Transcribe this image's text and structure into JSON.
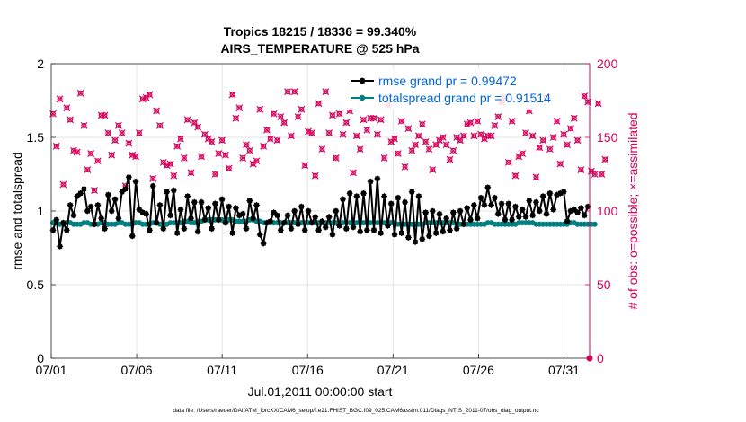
{
  "chart_data": {
    "type": "line",
    "title": "Tropics 18215 / 18336 = 99.340%",
    "subtitle": "AIRS_TEMPERATURE @ 525 hPa",
    "xlabel": "Jul.01,2011 00:00:00 start",
    "ylabel": "rmse and totalspread",
    "y2label": "# of obs: o=possible; ×=assimilated",
    "footnote": "data file: /Users/raeder/DAI/ATM_forcXX/CAM6_setup/f.e21.FHIST_BGC.f09_025.CAM6assim.011/Diags_NTrS_2011-07/obs_diag_output.nc",
    "xlim": [
      0,
      31.5
    ],
    "ylim": [
      0,
      2
    ],
    "y2lim": [
      0,
      200
    ],
    "grid": true,
    "legend_position": "top-right",
    "x_tick_values": [
      0,
      5,
      10,
      15,
      20,
      25,
      30
    ],
    "x_ticks": [
      "07/01",
      "07/06",
      "07/11",
      "07/16",
      "07/21",
      "07/26",
      "07/31"
    ],
    "y_tick_values": [
      0,
      0.5,
      1,
      1.5,
      2
    ],
    "y_ticks": [
      "0",
      "0.5",
      "1",
      "1.5",
      "2"
    ],
    "y2_tick_values": [
      0,
      50,
      100,
      150,
      200
    ],
    "y2_ticks": [
      "0",
      "50",
      "100",
      "150",
      "200"
    ],
    "series": [
      {
        "name": "rmse grand pr = 0.99472",
        "color": "#000000",
        "axis": "left",
        "values": [
          0.87,
          0.94,
          0.76,
          0.92,
          0.87,
          1.04,
          0.97,
          1.1,
          1.12,
          1.15,
          1.0,
          1.03,
          0.91,
          1.04,
          0.95,
          0.88,
          1.11,
          1.0,
          1.08,
          0.95,
          1.13,
          1.15,
          1.23,
          0.83,
          1.2,
          1.01,
          0.99,
          0.98,
          0.87,
          1.17,
          0.92,
          1.04,
          0.88,
          1.13,
          0.97,
          1.14,
          0.85,
          1.01,
          0.88,
          1.1,
          0.95,
          1.06,
          0.86,
          1.06,
          0.94,
          1.02,
          0.88,
          1.05,
          0.94,
          1.08,
          0.92,
          1.03,
          0.85,
          1.02,
          0.97,
          0.98,
          0.88,
          1.07,
          0.95,
          1.04,
          0.84,
          0.78,
          0.92,
          0.93,
          0.99,
          0.97,
          0.87,
          0.92,
          0.97,
          0.88,
          1.0,
          0.91,
          1.03,
          0.87,
          1.0,
          0.92,
          0.96,
          0.87,
          0.93,
          0.89,
          0.96,
          0.84,
          1.0,
          0.9,
          1.08,
          0.88,
          1.12,
          0.89,
          1.1,
          0.86,
          1.12,
          0.87,
          1.2,
          0.87,
          1.22,
          0.85,
          1.1,
          0.9,
          1.05,
          0.84,
          1.09,
          0.85,
          1.06,
          0.82,
          1.13,
          0.79,
          1.1,
          0.81,
          0.99,
          0.83,
          1.0,
          0.85,
          0.98,
          0.86,
          0.95,
          0.87,
          0.99,
          0.88,
          1.0,
          0.91,
          1.02,
          0.94,
          1.04,
          0.95,
          1.09,
          1.04,
          1.16,
          1.04,
          1.09,
          0.98,
          1.05,
          0.94,
          1.05,
          0.94,
          1.03,
          0.96,
          1.01,
          0.96,
          1.07,
          0.97,
          1.06,
          1.0,
          1.1,
          0.98,
          1.12,
          1.01,
          1.11,
          1.12,
          1.13,
          0.93,
          1.0,
          1.01,
          0.99,
          1.02,
          0.97,
          1.03
        ]
      },
      {
        "name": "totalspread grand pr = 0.91514",
        "color": "#008080",
        "axis": "left",
        "values": [
          0.92,
          0.92,
          0.91,
          0.91,
          0.92,
          0.92,
          0.91,
          0.91,
          0.91,
          0.92,
          0.92,
          0.91,
          0.91,
          0.91,
          0.92,
          0.92,
          0.91,
          0.91,
          0.91,
          0.92,
          0.92,
          0.91,
          0.91,
          0.91,
          0.92,
          0.92,
          0.91,
          0.91,
          0.91,
          0.92,
          0.92,
          0.91,
          0.91,
          0.91,
          0.92,
          0.92,
          0.92,
          0.92,
          0.93,
          0.93,
          0.92,
          0.92,
          0.93,
          0.93,
          0.94,
          0.94,
          0.94,
          0.94,
          0.94,
          0.94,
          0.94,
          0.94,
          0.94,
          0.93,
          0.93,
          0.93,
          0.93,
          0.94,
          0.94,
          0.93,
          0.93,
          0.92,
          0.92,
          0.92,
          0.92,
          0.92,
          0.92,
          0.92,
          0.92,
          0.92,
          0.92,
          0.92,
          0.92,
          0.92,
          0.92,
          0.92,
          0.92,
          0.92,
          0.92,
          0.92,
          0.92,
          0.92,
          0.92,
          0.92,
          0.92,
          0.92,
          0.92,
          0.92,
          0.92,
          0.92,
          0.92,
          0.92,
          0.92,
          0.92,
          0.92,
          0.92,
          0.92,
          0.92,
          0.92,
          0.92,
          0.91,
          0.91,
          0.91,
          0.91,
          0.91,
          0.91,
          0.91,
          0.91,
          0.92,
          0.92,
          0.92,
          0.92,
          0.92,
          0.92,
          0.92,
          0.92,
          0.92,
          0.91,
          0.91,
          0.91,
          0.91,
          0.91,
          0.91,
          0.91,
          0.91,
          0.91,
          0.92,
          0.92,
          0.91,
          0.91,
          0.91,
          0.91,
          0.91,
          0.91,
          0.91,
          0.92,
          0.92,
          0.92,
          0.92,
          0.92,
          0.91,
          0.91,
          0.91,
          0.91,
          0.91,
          0.91,
          0.91,
          0.91,
          0.91,
          0.91,
          0.92,
          0.92,
          0.91,
          0.91,
          0.91,
          0.91,
          0.91,
          0.91
        ]
      },
      {
        "name": "# obs possible / assimilated",
        "color": "#d6005a",
        "axis": "right",
        "values": [
          166,
          144,
          176,
          118,
          170,
          162,
          141,
          140,
          180,
          158,
          128,
          139,
          114,
          134,
          165,
          165,
          153,
          138,
          148,
          158,
          153,
          117,
          146,
          138,
          137,
          153,
          176,
          177,
          179,
          122,
          168,
          158,
          133,
          131,
          132,
          124,
          144,
          149,
          136,
          162,
          126,
          160,
          157,
          137,
          152,
          149,
          147,
          125,
          139,
          148,
          138,
          129,
          179,
          163,
          170,
          136,
          145,
          141,
          132,
          134,
          169,
          144,
          155,
          149,
          166,
          148,
          164,
          160,
          181,
          151,
          181,
          164,
          169,
          131,
          154,
          153,
          124,
          173,
          142,
          181,
          153,
          165,
          136,
          166,
          152,
          160,
          168,
          126,
          151,
          142,
          162,
          155,
          163,
          163,
          152,
          162,
          136,
          172,
          147,
          149,
          139,
          161,
          130,
          156,
          141,
          145,
          151,
          159,
          147,
          142,
          128,
          145,
          148,
          150,
          145,
          135,
          141,
          150,
          148,
          151,
          159,
          160,
          151,
          161,
          152,
          149,
          151,
          151,
          158,
          164,
          174,
          177,
          133,
          161,
          124,
          137,
          139,
          153,
          168,
          151,
          123,
          143,
          148,
          177,
          142,
          150,
          161,
          132,
          152,
          145,
          156,
          163,
          148,
          128,
          178,
          174,
          127,
          125,
          173,
          125,
          135
        ]
      }
    ]
  }
}
